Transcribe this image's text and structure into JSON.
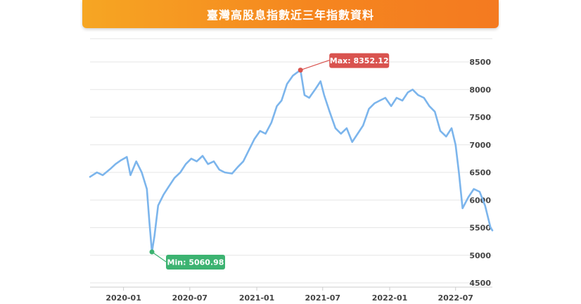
{
  "header": {
    "title": "臺灣高股息指數近三年指數資料"
  },
  "colors": {
    "title_gradient_start": "#f6a623",
    "title_gradient_end": "#f47a20",
    "line": "#7cb5ec",
    "max_marker": "#d9534f",
    "min_marker": "#3cb371",
    "grid": "#e6e6e6"
  },
  "chart_data": {
    "type": "line",
    "title": "臺灣高股息指數近三年指數資料",
    "xlabel": "",
    "ylabel": "",
    "ylim": [
      4500,
      8500
    ],
    "y_ticks": [
      4500,
      5000,
      5500,
      6000,
      6500,
      7000,
      7500,
      8000,
      8500
    ],
    "x_ticks": [
      "2020-01",
      "2020-07",
      "2021-01",
      "2021-07",
      "2022-01",
      "2022-07"
    ],
    "grid": true,
    "x_range": [
      "2019-10-01",
      "2022-10-10"
    ],
    "series": [
      {
        "x": [
          "2019-10-01",
          "2019-10-20",
          "2019-11-05",
          "2019-11-25",
          "2019-12-10",
          "2019-12-25",
          "2020-01-10",
          "2020-01-20",
          "2020-02-05",
          "2020-02-20",
          "2020-03-05",
          "2020-03-12",
          "2020-03-19",
          "2020-03-26",
          "2020-04-05",
          "2020-04-20",
          "2020-05-05",
          "2020-05-20",
          "2020-06-05",
          "2020-06-20",
          "2020-07-05",
          "2020-07-20",
          "2020-08-05",
          "2020-08-20",
          "2020-09-05",
          "2020-09-20",
          "2020-10-05",
          "2020-10-25",
          "2020-11-10",
          "2020-11-25",
          "2020-12-10",
          "2020-12-25",
          "2021-01-10",
          "2021-01-25",
          "2021-02-10",
          "2021-02-25",
          "2021-03-10",
          "2021-03-25",
          "2021-04-10",
          "2021-04-20",
          "2021-05-01",
          "2021-05-12",
          "2021-05-25",
          "2021-06-10",
          "2021-06-25",
          "2021-07-05",
          "2021-07-20",
          "2021-08-05",
          "2021-08-20",
          "2021-09-05",
          "2021-09-20",
          "2021-10-05",
          "2021-10-20",
          "2021-11-05",
          "2021-11-20",
          "2021-12-05",
          "2021-12-20",
          "2022-01-05",
          "2022-01-20",
          "2022-02-05",
          "2022-02-20",
          "2022-03-05",
          "2022-03-20",
          "2022-04-05",
          "2022-04-20",
          "2022-05-05",
          "2022-05-20",
          "2022-06-05",
          "2022-06-20",
          "2022-07-01",
          "2022-07-10",
          "2022-07-20",
          "2022-08-05",
          "2022-08-20",
          "2022-09-05",
          "2022-09-20",
          "2022-10-05",
          "2022-10-10"
        ],
        "y": [
          6420,
          6500,
          6450,
          6560,
          6650,
          6720,
          6780,
          6450,
          6700,
          6500,
          6200,
          5600,
          5061,
          5350,
          5900,
          6100,
          6250,
          6400,
          6500,
          6650,
          6750,
          6700,
          6800,
          6650,
          6700,
          6550,
          6500,
          6480,
          6600,
          6700,
          6900,
          7100,
          7250,
          7200,
          7400,
          7700,
          7800,
          8100,
          8250,
          8300,
          8352,
          7900,
          7850,
          8000,
          8150,
          7900,
          7600,
          7300,
          7200,
          7300,
          7050,
          7200,
          7350,
          7650,
          7750,
          7800,
          7850,
          7700,
          7850,
          7800,
          7950,
          8000,
          7900,
          7850,
          7700,
          7600,
          7250,
          7150,
          7300,
          7000,
          6500,
          5850,
          6050,
          6200,
          6150,
          5900,
          5500,
          5450
        ]
      }
    ],
    "annotations": {
      "max": {
        "label": "Max: 8352.12",
        "x": "2021-05-01",
        "y": 8352.12
      },
      "min": {
        "label": "Min: 5060.98",
        "x": "2020-03-19",
        "y": 5060.98
      }
    }
  }
}
